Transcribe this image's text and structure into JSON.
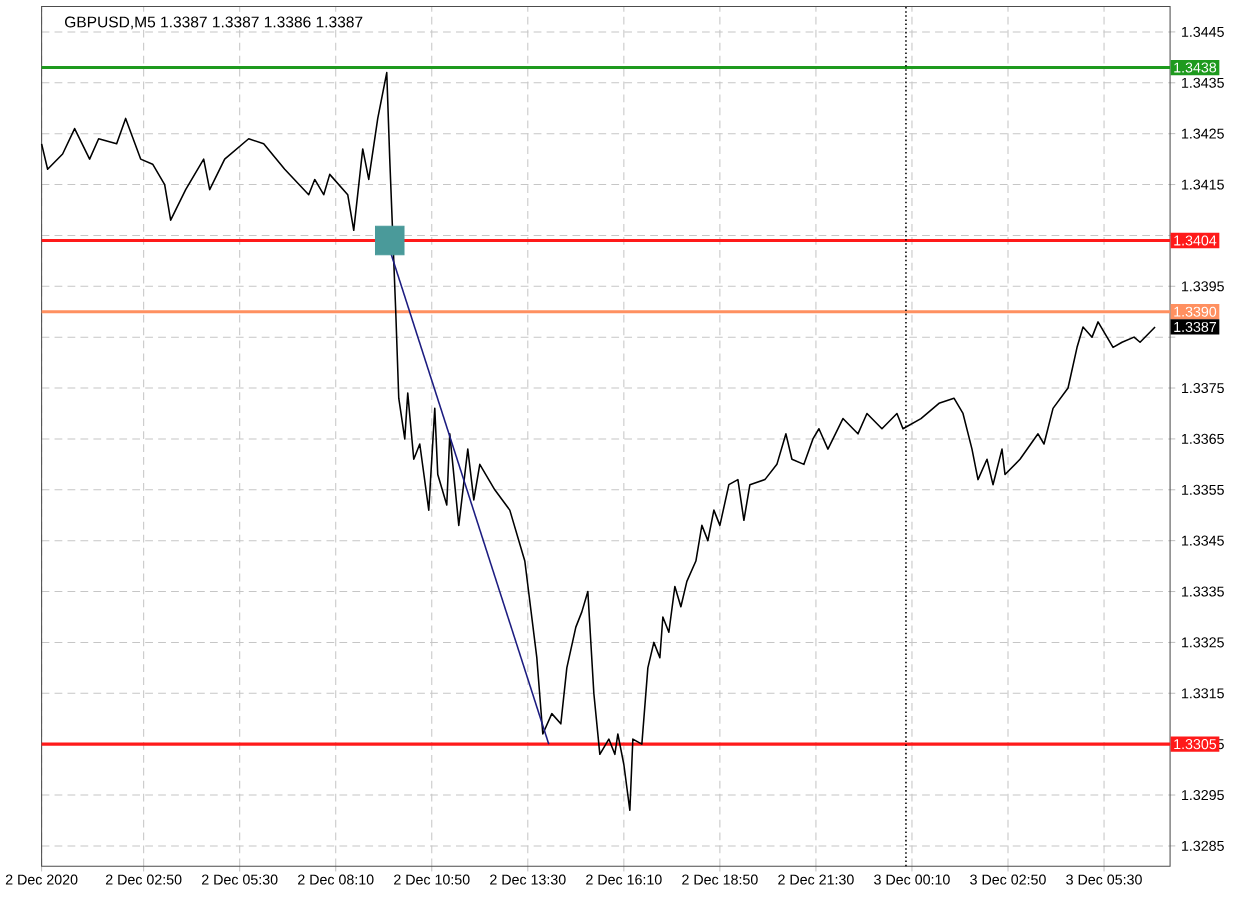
{
  "chart_data": {
    "type": "line",
    "title": "GBPUSD,M5  1.3387 1.3387 1.3386 1.3387",
    "xlim": [
      "2020-12-02T00:00",
      "2020-12-03T07:20"
    ],
    "ylim": [
      1.3281,
      1.345
    ],
    "xticks": [
      {
        "value": "2020-12-02T00:00",
        "label": "2 Dec 2020"
      },
      {
        "value": "2020-12-02T02:50",
        "label": "2 Dec 02:50"
      },
      {
        "value": "2020-12-02T05:30",
        "label": "2 Dec 05:30"
      },
      {
        "value": "2020-12-02T08:10",
        "label": "2 Dec 08:10"
      },
      {
        "value": "2020-12-02T10:50",
        "label": "2 Dec 10:50"
      },
      {
        "value": "2020-12-02T13:30",
        "label": "2 Dec 13:30"
      },
      {
        "value": "2020-12-02T16:10",
        "label": "2 Dec 16:10"
      },
      {
        "value": "2020-12-02T18:50",
        "label": "2 Dec 18:50"
      },
      {
        "value": "2020-12-02T21:30",
        "label": "2 Dec 21:30"
      },
      {
        "value": "2020-12-03T00:10",
        "label": "3 Dec 00:10"
      },
      {
        "value": "2020-12-03T02:50",
        "label": "3 Dec 02:50"
      },
      {
        "value": "2020-12-03T05:30",
        "label": "3 Dec 05:30"
      }
    ],
    "yticks": [
      1.3285,
      1.3295,
      1.3305,
      1.3315,
      1.3325,
      1.3335,
      1.3345,
      1.3355,
      1.3365,
      1.3375,
      {
        "value": 1.3385,
        "label": null
      },
      1.3395,
      {
        "value": 1.3405,
        "label": null
      },
      1.3415,
      1.3425,
      1.3435,
      1.3445
    ],
    "grid": true,
    "marker": "none",
    "series": [
      {
        "color": "#000000",
        "x": [
          "2020-12-02T00:00",
          "2020-12-02T00:10",
          "2020-12-02T00:35",
          "2020-12-02T00:55",
          "2020-12-02T01:20",
          "2020-12-02T01:35",
          "2020-12-02T02:05",
          "2020-12-02T02:20",
          "2020-12-02T02:45",
          "2020-12-02T03:05",
          "2020-12-02T03:25",
          "2020-12-02T03:35",
          "2020-12-02T04:00",
          "2020-12-02T04:30",
          "2020-12-02T04:40",
          "2020-12-02T05:05",
          "2020-12-02T05:45",
          "2020-12-02T06:10",
          "2020-12-02T06:45",
          "2020-12-02T07:25",
          "2020-12-02T07:35",
          "2020-12-02T07:50",
          "2020-12-02T08:00",
          "2020-12-02T08:30",
          "2020-12-02T08:40",
          "2020-12-02T08:55",
          "2020-12-02T09:05",
          "2020-12-02T09:20",
          "2020-12-02T09:35",
          "2020-12-02T09:40",
          "2020-12-02T09:45",
          "2020-12-02T09:50",
          "2020-12-02T09:55",
          "2020-12-02T10:05",
          "2020-12-02T10:10",
          "2020-12-02T10:20",
          "2020-12-02T10:30",
          "2020-12-02T10:45",
          "2020-12-02T10:55",
          "2020-12-02T11:00",
          "2020-12-02T11:15",
          "2020-12-02T11:20",
          "2020-12-02T11:35",
          "2020-12-02T11:50",
          "2020-12-02T12:00",
          "2020-12-02T12:10",
          "2020-12-02T12:35",
          "2020-12-02T13:00",
          "2020-12-02T13:25",
          "2020-12-02T13:45",
          "2020-12-02T13:55",
          "2020-12-02T14:10",
          "2020-12-02T14:25",
          "2020-12-02T14:35",
          "2020-12-02T14:50",
          "2020-12-02T15:00",
          "2020-12-02T15:10",
          "2020-12-02T15:20",
          "2020-12-02T15:30",
          "2020-12-02T15:45",
          "2020-12-02T15:55",
          "2020-12-02T16:00",
          "2020-12-02T16:10",
          "2020-12-02T16:20",
          "2020-12-02T16:25",
          "2020-12-02T16:40",
          "2020-12-02T16:50",
          "2020-12-02T17:00",
          "2020-12-02T17:10",
          "2020-12-02T17:15",
          "2020-12-02T17:25",
          "2020-12-02T17:35",
          "2020-12-02T17:45",
          "2020-12-02T17:55",
          "2020-12-02T18:10",
          "2020-12-02T18:20",
          "2020-12-02T18:30",
          "2020-12-02T18:40",
          "2020-12-02T18:50",
          "2020-12-02T19:05",
          "2020-12-02T19:20",
          "2020-12-02T19:30",
          "2020-12-02T19:40",
          "2020-12-02T20:05",
          "2020-12-02T20:25",
          "2020-12-02T20:40",
          "2020-12-02T20:50",
          "2020-12-02T21:10",
          "2020-12-02T21:25",
          "2020-12-02T21:35",
          "2020-12-02T21:50",
          "2020-12-02T22:15",
          "2020-12-02T22:40",
          "2020-12-02T22:55",
          "2020-12-02T23:20",
          "2020-12-02T23:45",
          "2020-12-02T23:55",
          "2020-12-03T00:25",
          "2020-12-03T00:55",
          "2020-12-03T01:20",
          "2020-12-03T01:35",
          "2020-12-03T01:50",
          "2020-12-03T02:00",
          "2020-12-03T02:15",
          "2020-12-03T02:25",
          "2020-12-03T02:40",
          "2020-12-03T02:45",
          "2020-12-03T03:10",
          "2020-12-03T03:40",
          "2020-12-03T03:50",
          "2020-12-03T04:05",
          "2020-12-03T04:30",
          "2020-12-03T04:45",
          "2020-12-03T04:55",
          "2020-12-03T05:10",
          "2020-12-03T05:20",
          "2020-12-03T05:35",
          "2020-12-03T05:45",
          "2020-12-03T06:00",
          "2020-12-03T06:20",
          "2020-12-03T06:30",
          "2020-12-03T06:55"
        ],
        "values": [
          1.3423,
          1.3418,
          1.3421,
          1.3426,
          1.342,
          1.3424,
          1.3423,
          1.3428,
          1.342,
          1.3419,
          1.3415,
          1.3408,
          1.3414,
          1.342,
          1.3414,
          1.342,
          1.3424,
          1.3423,
          1.3418,
          1.3413,
          1.3416,
          1.3413,
          1.3417,
          1.3413,
          1.3406,
          1.3422,
          1.3416,
          1.3428,
          1.3437,
          1.342,
          1.3405,
          1.339,
          1.3373,
          1.3365,
          1.3374,
          1.3361,
          1.3364,
          1.3351,
          1.3371,
          1.3358,
          1.3352,
          1.3366,
          1.3348,
          1.3363,
          1.3353,
          1.336,
          1.3355,
          1.3351,
          1.3341,
          1.3322,
          1.3307,
          1.3311,
          1.3309,
          1.332,
          1.3328,
          1.3331,
          1.3335,
          1.3315,
          1.3303,
          1.3306,
          1.3303,
          1.3307,
          1.3301,
          1.3292,
          1.3306,
          1.3305,
          1.332,
          1.3325,
          1.3322,
          1.333,
          1.3327,
          1.3336,
          1.3332,
          1.3337,
          1.3341,
          1.3348,
          1.3345,
          1.3351,
          1.3348,
          1.3356,
          1.3357,
          1.3349,
          1.3356,
          1.3357,
          1.336,
          1.3366,
          1.3361,
          1.336,
          1.3365,
          1.3367,
          1.3363,
          1.3369,
          1.3366,
          1.337,
          1.3367,
          1.337,
          1.3367,
          1.3369,
          1.3372,
          1.3373,
          1.337,
          1.3363,
          1.3357,
          1.3361,
          1.3356,
          1.3363,
          1.3358,
          1.3361,
          1.3366,
          1.3364,
          1.3371,
          1.3375,
          1.3383,
          1.3387,
          1.3385,
          1.3388,
          1.3385,
          1.3383,
          1.3384,
          1.3385,
          1.3384,
          1.3387
        ]
      },
      {
        "type": "line",
        "color": "#1c1c80",
        "x": [
          "2020-12-02T09:35",
          "2020-12-02T14:05"
        ],
        "values": [
          1.3404,
          1.3305
        ]
      },
      {
        "type": "scatter",
        "marker": "square",
        "color": "#4a9a9a",
        "x": [
          "2020-12-02T09:40"
        ],
        "values": [
          1.3404
        ]
      }
    ],
    "ref_lines": [
      {
        "axis": "y",
        "value": 1.3438,
        "label": "1.3438",
        "color": "#1e9a1e"
      },
      {
        "axis": "y",
        "value": 1.3404,
        "label": "1.3404",
        "color": "#ff1a1a"
      },
      {
        "axis": "y",
        "value": 1.339,
        "label": "1.3390",
        "color": "#ff9060"
      },
      {
        "axis": "y",
        "value": 1.3305,
        "label": "1.3305",
        "color": "#ff1a1a"
      },
      {
        "axis": "x",
        "value": "2020-12-03T00:00",
        "color": "#000000",
        "line_style": "dotted"
      }
    ],
    "annotations": [
      "1.3387"
    ]
  }
}
